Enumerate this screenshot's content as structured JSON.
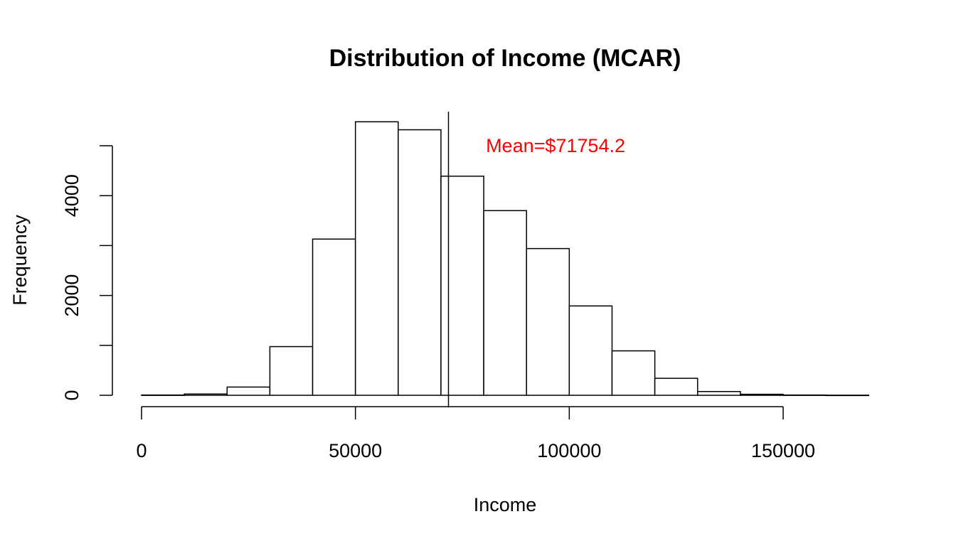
{
  "chart_data": {
    "type": "bar",
    "title": "Distribution of Income (MCAR)",
    "xlabel": "Income",
    "ylabel": "Frequency",
    "bin_width": 10000,
    "bins": [
      {
        "from": 0,
        "to": 10000,
        "count": 5
      },
      {
        "from": 10000,
        "to": 20000,
        "count": 25
      },
      {
        "from": 20000,
        "to": 30000,
        "count": 165
      },
      {
        "from": 30000,
        "to": 40000,
        "count": 975
      },
      {
        "from": 40000,
        "to": 50000,
        "count": 3130
      },
      {
        "from": 50000,
        "to": 60000,
        "count": 5480
      },
      {
        "from": 60000,
        "to": 70000,
        "count": 5320
      },
      {
        "from": 70000,
        "to": 80000,
        "count": 4390
      },
      {
        "from": 80000,
        "to": 90000,
        "count": 3700
      },
      {
        "from": 90000,
        "to": 100000,
        "count": 2940
      },
      {
        "from": 100000,
        "to": 110000,
        "count": 1790
      },
      {
        "from": 110000,
        "to": 120000,
        "count": 890
      },
      {
        "from": 120000,
        "to": 130000,
        "count": 340
      },
      {
        "from": 130000,
        "to": 140000,
        "count": 75
      },
      {
        "from": 140000,
        "to": 150000,
        "count": 20
      },
      {
        "from": 150000,
        "to": 160000,
        "count": 5
      },
      {
        "from": 160000,
        "to": 170000,
        "count": 2
      }
    ],
    "x_ticks": [
      0,
      50000,
      100000,
      150000
    ],
    "x_tick_labels": [
      "0",
      "50000",
      "100000",
      "150000"
    ],
    "y_ticks": [
      0,
      1000,
      2000,
      3000,
      4000,
      5000
    ],
    "y_tick_labels": [
      "0",
      "",
      "2000",
      "",
      "4000",
      ""
    ],
    "xlim": [
      0,
      170000
    ],
    "ylim": [
      0,
      5500
    ],
    "mean_line": {
      "x": 71754.2
    },
    "annotation": {
      "text": "Mean=$71754.2",
      "x": 80500,
      "y": 5000,
      "color": "#ff0000"
    },
    "grid": false,
    "bar_fill": "#ffffff",
    "bar_stroke": "#000000"
  }
}
